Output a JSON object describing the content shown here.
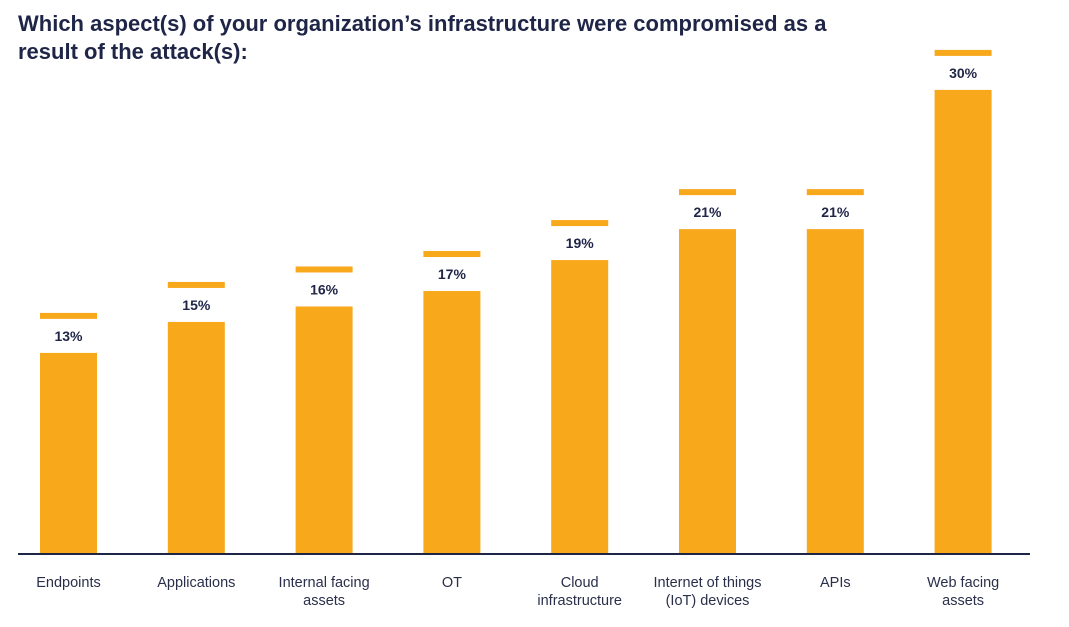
{
  "chart_data": {
    "type": "bar",
    "title": "Which aspect(s) of your organization’s infrastructure were compromised as a result of the attack(s):",
    "categories": [
      "Endpoints",
      "Applications",
      "Internal facing\nassets",
      "OT",
      "Cloud\ninfrastructure",
      "Internet of things\n(IoT) devices",
      "APIs",
      "Web facing\nassets"
    ],
    "values": [
      13,
      15,
      16,
      17,
      19,
      21,
      21,
      30
    ],
    "value_labels": [
      "13%",
      "15%",
      "16%",
      "17%",
      "19%",
      "21%",
      "21%",
      "30%"
    ],
    "unit": "%",
    "ylim": [
      0,
      30
    ],
    "xlabel": "",
    "ylabel": "",
    "grid": false,
    "bar_color": "#f7a81b",
    "label_color": "#1f2547",
    "axis_color": "#1f2547"
  }
}
